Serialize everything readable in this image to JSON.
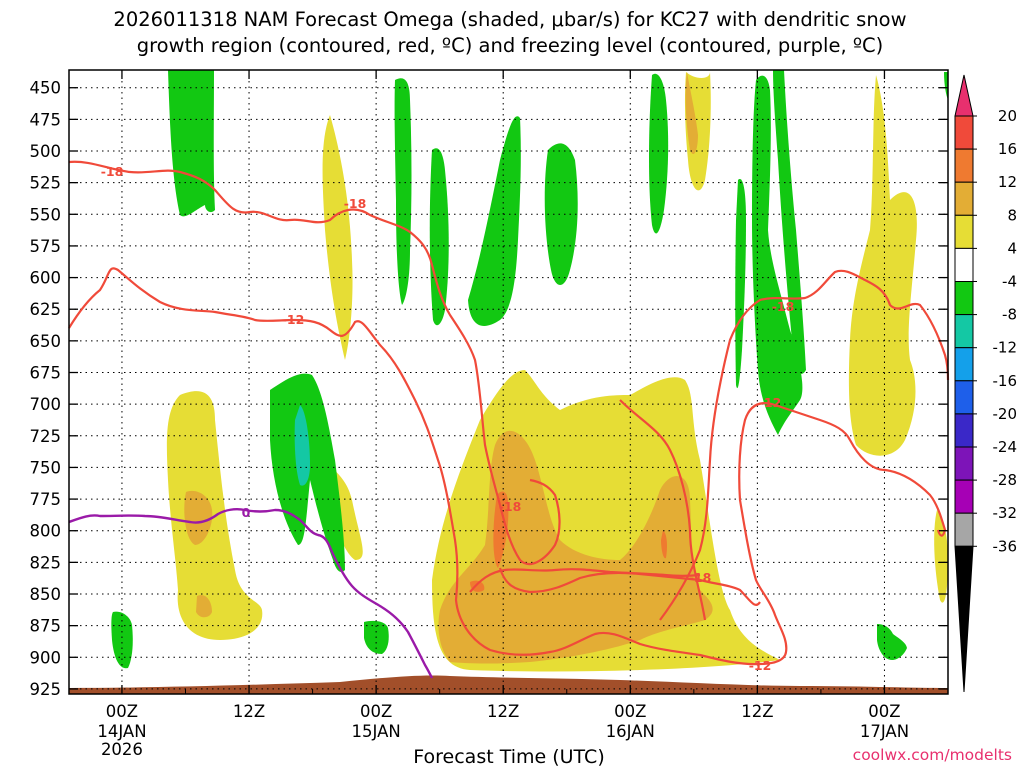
{
  "chart_data": {
    "type": "contour",
    "title_lines": [
      "2026011318 NAM Forecast Omega (shaded, μbar/s) for KC27 with dendritic snow",
      "growth region (contoured, red, ºC) and freezing level (contoured, purple, ºC)"
    ],
    "xlabel": "Forecast Time (UTC)",
    "ylabel": "",
    "y_ticks": [
      450,
      475,
      500,
      525,
      550,
      575,
      600,
      625,
      650,
      675,
      700,
      725,
      750,
      775,
      800,
      825,
      850,
      875,
      900,
      925
    ],
    "ylim_hpa": [
      929,
      436
    ],
    "xlim_hours_from_14JAN00Z": [
      -5,
      78
    ],
    "x_ticks": [
      {
        "hours": 0,
        "label": "00Z",
        "date": "14JAN",
        "year": "2026"
      },
      {
        "hours": 12,
        "label": "12Z",
        "date": "",
        "year": ""
      },
      {
        "hours": 24,
        "label": "00Z",
        "date": "15JAN",
        "year": ""
      },
      {
        "hours": 36,
        "label": "12Z",
        "date": "",
        "year": ""
      },
      {
        "hours": 48,
        "label": "00Z",
        "date": "16JAN",
        "year": ""
      },
      {
        "hours": 60,
        "label": "12Z",
        "date": "",
        "year": ""
      },
      {
        "hours": 72,
        "label": "00Z",
        "date": "17JAN",
        "year": ""
      }
    ],
    "colorbar": {
      "labels": [
        "20",
        "16",
        "12",
        "8",
        "4",
        "-4",
        "-8",
        "-12",
        "-16",
        "-20",
        "-24",
        "-28",
        "-32",
        "-36"
      ],
      "colors": [
        "#e8306e",
        "#f04a3a",
        "#ef7a30",
        "#e3ad35",
        "#e6dd35",
        "#ffffff",
        "#12c812",
        "#14c8a4",
        "#14a0ea",
        "#1e5fea",
        "#3a28c8",
        "#7d14b8",
        "#a600b5",
        "#a6a6a6",
        "#000000"
      ]
    },
    "contour_labels": [
      {
        "text": "-18",
        "series": "dgz"
      },
      {
        "text": "-18",
        "series": "dgz"
      },
      {
        "text": "-12",
        "series": "dgz"
      },
      {
        "text": "-18",
        "series": "dgz"
      },
      {
        "text": "-18",
        "series": "dgz"
      },
      {
        "text": "-18",
        "series": "dgz"
      },
      {
        "text": "-12",
        "series": "dgz"
      },
      {
        "text": "-12",
        "series": "dgz"
      },
      {
        "text": "0",
        "series": "freezing"
      }
    ],
    "colors": {
      "dgz": "#f04a3a",
      "freezing": "#9a1aa8",
      "terrain": "#a24f2a"
    }
  },
  "credit": "coolwx.com/modelts"
}
